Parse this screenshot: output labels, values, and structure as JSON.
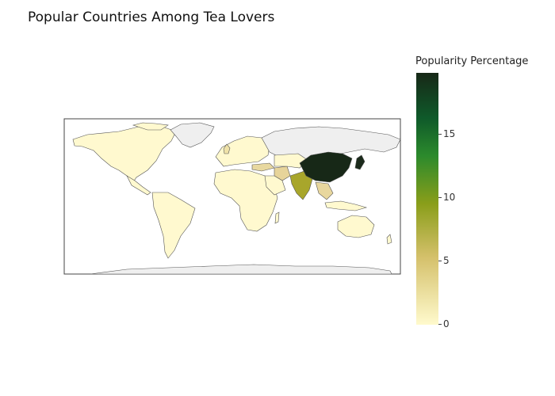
{
  "title": "Popular Countries Among Tea Lovers",
  "colorbar": {
    "title": "Popularity Percentage",
    "ticks": [
      "0",
      "5",
      "10",
      "15"
    ],
    "range": [
      0,
      20
    ],
    "colors": [
      "#fffacd",
      "#d4c06a",
      "#8a9e1a",
      "#2c8a2c",
      "#0f5a2a",
      "#172817"
    ]
  },
  "map": {
    "projection": "equirectangular",
    "no_data_color": "#efefef",
    "border_color": "#444444",
    "highlighted_regions": [
      {
        "name": "China",
        "level": "highest",
        "color": "#172817"
      },
      {
        "name": "India",
        "level": "medium",
        "color": "#a8a62b"
      },
      {
        "name": "Japan",
        "level": "high",
        "color": "#1b2a1b"
      },
      {
        "name": "Turkey",
        "level": "low",
        "color": "#e8d8a0"
      },
      {
        "name": "Iran",
        "level": "low",
        "color": "#e7d49a"
      },
      {
        "name": "United Kingdom",
        "level": "low",
        "color": "#efe2a8"
      },
      {
        "name": "Southeast Asia",
        "level": "low",
        "color": "#e8d79e"
      }
    ]
  }
}
